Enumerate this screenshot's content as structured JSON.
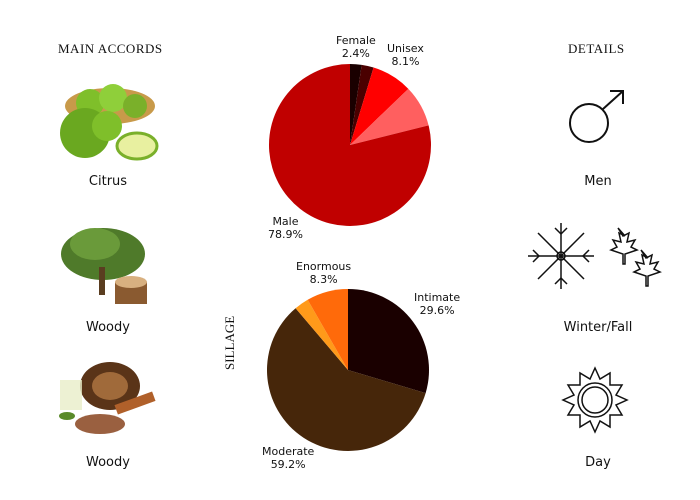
{
  "left": {
    "title": "MAIN ACCORDS",
    "items": [
      {
        "label": "Citrus"
      },
      {
        "label": "Woody"
      },
      {
        "label": "Woody"
      }
    ]
  },
  "right": {
    "title": "DETAILS",
    "items": [
      {
        "label": "Men",
        "icon": "male-symbol-icon"
      },
      {
        "label": "Winter/Fall",
        "icon": "snowflake-maple-leaf-icon"
      },
      {
        "label": "Day",
        "icon": "sun-icon"
      }
    ]
  },
  "chart_data": [
    {
      "type": "pie",
      "title": "",
      "start": "top",
      "direction": "clockwise",
      "slices": [
        {
          "label": "",
          "value": 2.3,
          "value_label": "",
          "color": "#1a0000"
        },
        {
          "label": "Female",
          "value": 2.4,
          "value_label": "2.4%",
          "color": "#4a0000"
        },
        {
          "label": "Unisex",
          "value": 8.1,
          "value_label": "8.1%",
          "color": "#ff0000"
        },
        {
          "label": "",
          "value": 8.3,
          "value_label": "",
          "color": "#ff5f5f"
        },
        {
          "label": "Male",
          "value": 78.9,
          "value_label": "78.9%",
          "color": "#c00000"
        }
      ]
    },
    {
      "type": "pie",
      "title": "SILLAGE",
      "start": "top",
      "direction": "clockwise",
      "slices": [
        {
          "label": "Intimate",
          "value": 29.6,
          "value_label": "29.6%",
          "color": "#1a0000"
        },
        {
          "label": "Moderate",
          "value": 59.2,
          "value_label": "59.2%",
          "color": "#46260a"
        },
        {
          "label": "",
          "value": 2.9,
          "value_label": "",
          "color": "#ff9a1a"
        },
        {
          "label": "Enormous",
          "value": 8.3,
          "value_label": "8.3%",
          "color": "#ff6a0a"
        }
      ]
    }
  ]
}
